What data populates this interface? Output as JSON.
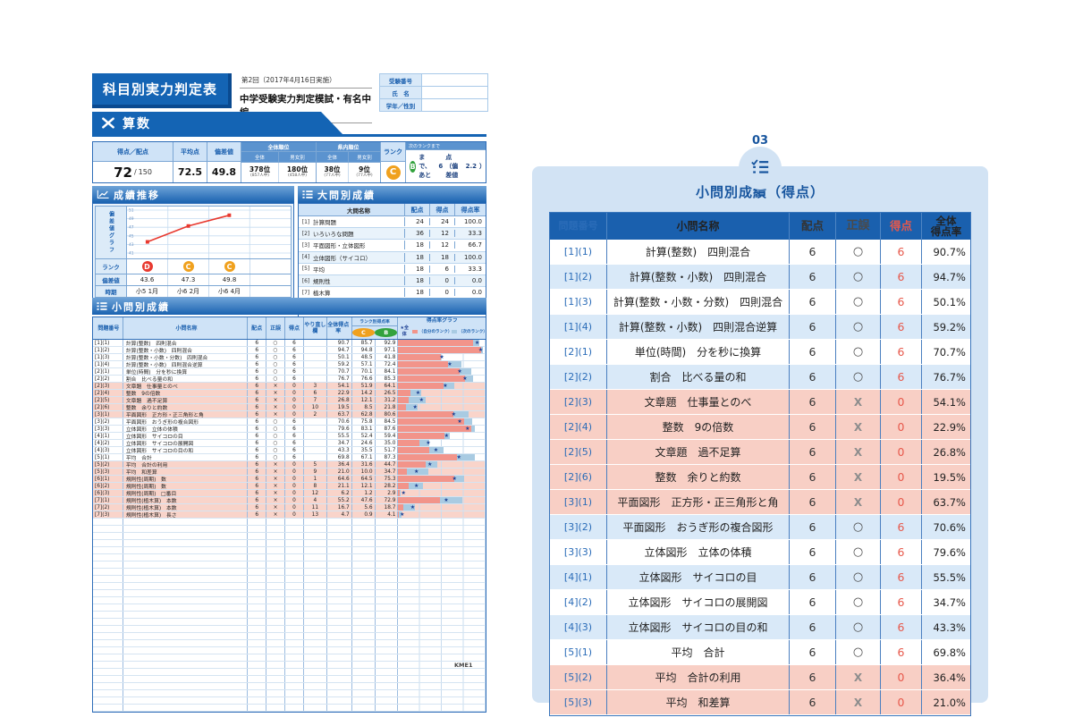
{
  "report": {
    "title": "科目別実力判定表",
    "round": "第2回（2017年4月16日実施）",
    "exam_name": "中学受験実力判定模試・有名中編",
    "student_fields": [
      {
        "label": "受験番号",
        "value": ""
      },
      {
        "label": "氏　名",
        "value": ""
      },
      {
        "label": "学年／性別",
        "value": ""
      }
    ],
    "subject": "算数",
    "page_code": "KME1"
  },
  "summary": {
    "headers": {
      "score": "得点／配点",
      "average": "平均点",
      "deviation": "偏差値",
      "overall_rank": "全体順位",
      "pref_rank": "県内順位",
      "overall": "全体",
      "by_gender": "男女別",
      "rank": "ランク",
      "next_rank": "次のランクまで"
    },
    "score": "72",
    "score_separator": "/",
    "max_score": "150",
    "average": "72.5",
    "deviation": "49.8",
    "ranks": [
      {
        "rank": "378位",
        "of": "(857人中)"
      },
      {
        "rank": "180位",
        "of": "(458人中)"
      },
      {
        "rank": "38位",
        "of": "(77人中)"
      },
      {
        "rank": "9位",
        "of": "(77人中)"
      }
    ],
    "rank_letter": "C",
    "rank_color": "#f0a11e",
    "next": {
      "letter": "B",
      "letter_color": "#33a23d",
      "text_before": "まで、あと",
      "points": "6",
      "text_after": "点（偏差値",
      "deviation_gap": "2.2",
      "text_close": "）"
    }
  },
  "trend": {
    "section_title": "成績推移",
    "axis_label": "偏差値グラフ",
    "y_ticks": [
      51,
      49,
      47,
      45,
      43,
      41
    ],
    "line_color": "#e8392f",
    "row_labels": {
      "rank": "ランク",
      "deviation": "偏差値",
      "period": "時期"
    },
    "points": [
      {
        "rank": "D",
        "rank_color": "#e8392f",
        "deviation": "43.6",
        "period": "小5 1月",
        "value": 43.6
      },
      {
        "rank": "C",
        "rank_color": "#f0a11e",
        "deviation": "47.3",
        "period": "小6 2月",
        "value": 47.3
      },
      {
        "rank": "C",
        "rank_color": "#f0a11e",
        "deviation": "49.8",
        "period": "小6 4月",
        "value": 49.8
      }
    ]
  },
  "major": {
    "section_title": "大問別成績",
    "headers": {
      "name": "大問名称",
      "max": "配点",
      "score": "得点",
      "rate": "得点率"
    },
    "rows": [
      {
        "num": "[1]",
        "name": "計算問題",
        "max": "24",
        "score": "24",
        "rate": "100.0"
      },
      {
        "num": "[2]",
        "name": "いろいろな問題",
        "max": "36",
        "score": "12",
        "rate": "33.3"
      },
      {
        "num": "[3]",
        "name": "平面図形・立体図形",
        "max": "18",
        "score": "12",
        "rate": "66.7"
      },
      {
        "num": "[4]",
        "name": "立体図形（サイコロ）",
        "max": "18",
        "score": "18",
        "rate": "100.0"
      },
      {
        "num": "[5]",
        "name": "平均",
        "max": "18",
        "score": "6",
        "rate": "33.3"
      },
      {
        "num": "[6]",
        "name": "規則性",
        "max": "18",
        "score": "0",
        "rate": "0.0"
      },
      {
        "num": "[7]",
        "name": "植木算",
        "max": "18",
        "score": "0",
        "rate": "0.0"
      }
    ],
    "empty_rows": 3
  },
  "minor": {
    "section_title": "小問別成績",
    "headers": {
      "num": "問題番号",
      "name": "小問名称",
      "max": "配点",
      "correct": "正誤",
      "score": "得点",
      "redo": "やり直し欄",
      "overall": "全体得点率",
      "rank_rate": "ランク別得点率",
      "rank_c": "C",
      "rank_b": "B",
      "graph": "得点率グラフ",
      "legend_star": "★全体",
      "legend_mine": "（自分のランク）",
      "legend_next": "（次のランク）"
    },
    "bar_colors": {
      "mine": "#f2948a",
      "next": "#a9cbe2",
      "star": "#1c3f93"
    },
    "rows": [
      {
        "num": "[1](1)",
        "name": "計算(整数)　四則混合",
        "max": "6",
        "correct": "○",
        "score": "6",
        "redo": "",
        "overall": "90.7",
        "c": "85.7",
        "b": "92.9",
        "wrong": false
      },
      {
        "num": "[1](2)",
        "name": "計算(整数・小数)　四則混合",
        "max": "6",
        "correct": "○",
        "score": "6",
        "redo": "",
        "overall": "94.7",
        "c": "94.8",
        "b": "97.1",
        "wrong": false
      },
      {
        "num": "[1](3)",
        "name": "計算(整数・小数・分数)　四則混合",
        "max": "6",
        "correct": "○",
        "score": "6",
        "redo": "",
        "overall": "50.1",
        "c": "48.5",
        "b": "41.8",
        "wrong": false
      },
      {
        "num": "[1](4)",
        "name": "計算(整数・小数)　四則混合逆算",
        "max": "6",
        "correct": "○",
        "score": "6",
        "redo": "",
        "overall": "59.2",
        "c": "57.1",
        "b": "72.4",
        "wrong": false
      },
      {
        "num": "[2](1)",
        "name": "単位(時間)　分を秒に換算",
        "max": "6",
        "correct": "○",
        "score": "6",
        "redo": "",
        "overall": "70.7",
        "c": "70.1",
        "b": "84.1",
        "wrong": false
      },
      {
        "num": "[2](2)",
        "name": "割合　比べる量の和",
        "max": "6",
        "correct": "○",
        "score": "6",
        "redo": "",
        "overall": "76.7",
        "c": "76.6",
        "b": "85.3",
        "wrong": false
      },
      {
        "num": "[2](3)",
        "name": "文章題　仕事量とのべ",
        "max": "6",
        "correct": "×",
        "score": "0",
        "redo": "3",
        "overall": "54.1",
        "c": "51.9",
        "b": "64.1",
        "wrong": true
      },
      {
        "num": "[2](4)",
        "name": "整数　9の倍数",
        "max": "6",
        "correct": "×",
        "score": "0",
        "redo": "6",
        "overall": "22.9",
        "c": "14.2",
        "b": "26.5",
        "wrong": true
      },
      {
        "num": "[2](5)",
        "name": "文章題　過不足算",
        "max": "6",
        "correct": "×",
        "score": "0",
        "redo": "7",
        "overall": "26.8",
        "c": "12.1",
        "b": "31.2",
        "wrong": true
      },
      {
        "num": "[2](6)",
        "name": "整数　余りと約数",
        "max": "6",
        "correct": "×",
        "score": "0",
        "redo": "10",
        "overall": "19.5",
        "c": "8.5",
        "b": "21.8",
        "wrong": true
      },
      {
        "num": "[3](1)",
        "name": "平面図形　正方形・正三角形と角",
        "max": "6",
        "correct": "×",
        "score": "0",
        "redo": "2",
        "overall": "63.7",
        "c": "62.8",
        "b": "80.6",
        "wrong": true
      },
      {
        "num": "[3](2)",
        "name": "平面図形　おうぎ形の複合図形",
        "max": "6",
        "correct": "○",
        "score": "6",
        "redo": "",
        "overall": "70.6",
        "c": "75.8",
        "b": "84.5",
        "wrong": false
      },
      {
        "num": "[3](3)",
        "name": "立体図形　立体の体積",
        "max": "6",
        "correct": "○",
        "score": "6",
        "redo": "",
        "overall": "79.6",
        "c": "83.1",
        "b": "87.6",
        "wrong": false
      },
      {
        "num": "[4](1)",
        "name": "立体図形　サイコロの目",
        "max": "6",
        "correct": "○",
        "score": "6",
        "redo": "",
        "overall": "55.5",
        "c": "52.4",
        "b": "59.4",
        "wrong": false
      },
      {
        "num": "[4](2)",
        "name": "立体図形　サイコロの展開図",
        "max": "6",
        "correct": "○",
        "score": "6",
        "redo": "",
        "overall": "34.7",
        "c": "24.6",
        "b": "35.0",
        "wrong": false
      },
      {
        "num": "[4](3)",
        "name": "立体図形　サイコロの目の和",
        "max": "6",
        "correct": "○",
        "score": "6",
        "redo": "",
        "overall": "43.3",
        "c": "35.5",
        "b": "51.7",
        "wrong": false
      },
      {
        "num": "[5](1)",
        "name": "平均　合計",
        "max": "6",
        "correct": "○",
        "score": "6",
        "redo": "",
        "overall": "69.8",
        "c": "67.1",
        "b": "87.3",
        "wrong": false
      },
      {
        "num": "[5](2)",
        "name": "平均　合計の利用",
        "max": "6",
        "correct": "×",
        "score": "0",
        "redo": "5",
        "overall": "36.4",
        "c": "31.6",
        "b": "44.7",
        "wrong": true
      },
      {
        "num": "[5](3)",
        "name": "平均　和差算",
        "max": "6",
        "correct": "×",
        "score": "0",
        "redo": "9",
        "overall": "21.0",
        "c": "10.0",
        "b": "34.7",
        "wrong": true
      },
      {
        "num": "[6](1)",
        "name": "規則性(周期)　数",
        "max": "6",
        "correct": "×",
        "score": "0",
        "redo": "1",
        "overall": "64.6",
        "c": "64.5",
        "b": "75.3",
        "wrong": true
      },
      {
        "num": "[6](2)",
        "name": "規則性(周期)　数",
        "max": "6",
        "correct": "×",
        "score": "0",
        "redo": "8",
        "overall": "21.1",
        "c": "12.1",
        "b": "28.2",
        "wrong": true
      },
      {
        "num": "[6](3)",
        "name": "規則性(周期)　□番目",
        "max": "6",
        "correct": "×",
        "score": "0",
        "redo": "12",
        "overall": "6.2",
        "c": "1.2",
        "b": "2.9",
        "wrong": true
      },
      {
        "num": "[7](1)",
        "name": "規則性(植木算)　本数",
        "max": "6",
        "correct": "×",
        "score": "0",
        "redo": "4",
        "overall": "55.2",
        "c": "47.6",
        "b": "72.9",
        "wrong": true
      },
      {
        "num": "[7](2)",
        "name": "規則性(植木算)　本数",
        "max": "6",
        "correct": "×",
        "score": "0",
        "redo": "11",
        "overall": "16.7",
        "c": "5.6",
        "b": "18.7",
        "wrong": true
      },
      {
        "num": "[7](3)",
        "name": "規則性(植木算)　長さ",
        "max": "6",
        "correct": "×",
        "score": "0",
        "redo": "13",
        "overall": "4.7",
        "c": "0.9",
        "b": "4.1",
        "wrong": true
      }
    ],
    "empty_rows": 27
  },
  "panel": {
    "number": "03",
    "title": "小問別成績（得点）",
    "headers": {
      "num": "問題番号",
      "name": "小問名称",
      "max": "配点",
      "correct": "正誤",
      "score": "得点",
      "rate": "全体 得点率"
    },
    "rate_header_lines": [
      "全体",
      "得点率"
    ],
    "rows": [
      {
        "num": "[1](1)",
        "name": "計算(整数)　四則混合",
        "max": "6",
        "correct": "○",
        "score": "6",
        "rate": "90.7%",
        "wrong": false
      },
      {
        "num": "[1](2)",
        "name": "計算(整数・小数)　四則混合",
        "max": "6",
        "correct": "○",
        "score": "6",
        "rate": "94.7%",
        "wrong": false
      },
      {
        "num": "[1](3)",
        "name": "計算(整数・小数・分数)　四則混合",
        "max": "6",
        "correct": "○",
        "score": "6",
        "rate": "50.1%",
        "wrong": false
      },
      {
        "num": "[1](4)",
        "name": "計算(整数・小数)　四則混合逆算",
        "max": "6",
        "correct": "○",
        "score": "6",
        "rate": "59.2%",
        "wrong": false
      },
      {
        "num": "[2](1)",
        "name": "単位(時間)　分を秒に換算",
        "max": "6",
        "correct": "○",
        "score": "6",
        "rate": "70.7%",
        "wrong": false
      },
      {
        "num": "[2](2)",
        "name": "割合　比べる量の和",
        "max": "6",
        "correct": "○",
        "score": "6",
        "rate": "76.7%",
        "wrong": false
      },
      {
        "num": "[2](3)",
        "name": "文章題　仕事量とのべ",
        "max": "6",
        "correct": "X",
        "score": "0",
        "rate": "54.1%",
        "wrong": true
      },
      {
        "num": "[2](4)",
        "name": "整数　9の倍数",
        "max": "6",
        "correct": "X",
        "score": "0",
        "rate": "22.9%",
        "wrong": true
      },
      {
        "num": "[2](5)",
        "name": "文章題　過不足算",
        "max": "6",
        "correct": "X",
        "score": "0",
        "rate": "26.8%",
        "wrong": true
      },
      {
        "num": "[2](6)",
        "name": "整数　余りと約数",
        "max": "6",
        "correct": "X",
        "score": "0",
        "rate": "19.5%",
        "wrong": true
      },
      {
        "num": "[3](1)",
        "name": "平面図形　正方形・正三角形と角",
        "max": "6",
        "correct": "X",
        "score": "0",
        "rate": "63.7%",
        "wrong": true
      },
      {
        "num": "[3](2)",
        "name": "平面図形　おうぎ形の複合図形",
        "max": "6",
        "correct": "○",
        "score": "6",
        "rate": "70.6%",
        "wrong": false
      },
      {
        "num": "[3](3)",
        "name": "立体図形　立体の体積",
        "max": "6",
        "correct": "○",
        "score": "6",
        "rate": "79.6%",
        "wrong": false
      },
      {
        "num": "[4](1)",
        "name": "立体図形　サイコロの目",
        "max": "6",
        "correct": "○",
        "score": "6",
        "rate": "55.5%",
        "wrong": false
      },
      {
        "num": "[4](2)",
        "name": "立体図形　サイコロの展開図",
        "max": "6",
        "correct": "○",
        "score": "6",
        "rate": "34.7%",
        "wrong": false
      },
      {
        "num": "[4](3)",
        "name": "立体図形　サイコロの目の和",
        "max": "6",
        "correct": "○",
        "score": "6",
        "rate": "43.3%",
        "wrong": false
      },
      {
        "num": "[5](1)",
        "name": "平均　合計",
        "max": "6",
        "correct": "○",
        "score": "6",
        "rate": "69.8%",
        "wrong": false
      },
      {
        "num": "[5](2)",
        "name": "平均　合計の利用",
        "max": "6",
        "correct": "X",
        "score": "0",
        "rate": "36.4%",
        "wrong": true
      },
      {
        "num": "[5](3)",
        "name": "平均　和差算",
        "max": "6",
        "correct": "X",
        "score": "0",
        "rate": "21.0%",
        "wrong": true
      }
    ]
  }
}
